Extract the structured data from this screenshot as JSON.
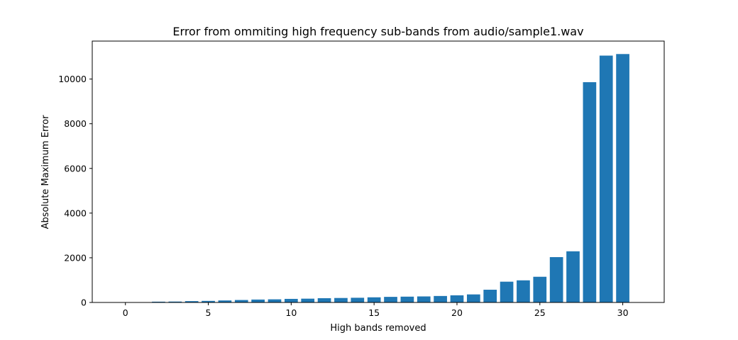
{
  "chart_data": {
    "type": "bar",
    "title": "Error from ommiting high frequency sub-bands from audio/sample1.wav",
    "xlabel": "High bands removed",
    "ylabel": "Absolute Maximum Error",
    "x": [
      0,
      1,
      2,
      3,
      4,
      5,
      6,
      7,
      8,
      9,
      10,
      11,
      12,
      13,
      14,
      15,
      16,
      17,
      18,
      19,
      20,
      21,
      22,
      23,
      24,
      25,
      26,
      27,
      28,
      29,
      30
    ],
    "values": [
      0,
      5,
      35,
      40,
      60,
      70,
      90,
      110,
      130,
      140,
      160,
      170,
      190,
      200,
      210,
      230,
      250,
      260,
      270,
      290,
      320,
      360,
      570,
      930,
      990,
      1150,
      2030,
      2290,
      9860,
      11050,
      11120
    ],
    "xlim": [
      -2,
      32.5
    ],
    "ylim": [
      0,
      11700
    ],
    "xticks": [
      "0",
      "5",
      "10",
      "15",
      "20",
      "25",
      "30"
    ],
    "yticks": [
      "0",
      "2000",
      "4000",
      "6000",
      "8000",
      "10000"
    ],
    "color": "#1f77b4",
    "grid": false,
    "legend": "none"
  }
}
